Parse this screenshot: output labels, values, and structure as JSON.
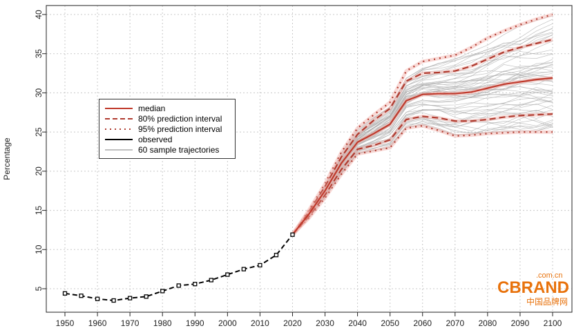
{
  "chart_data": {
    "type": "line",
    "ylabel": "Percentage",
    "xlabel": "",
    "xlim": [
      1945,
      2105
    ],
    "ylim": [
      2,
      41
    ],
    "x_ticks": [
      1950,
      1960,
      1970,
      1980,
      1990,
      2000,
      2010,
      2020,
      2030,
      2040,
      2050,
      2060,
      2070,
      2080,
      2090,
      2100
    ],
    "y_ticks": [
      5,
      10,
      15,
      20,
      25,
      30,
      35,
      40
    ],
    "grid": true,
    "legend_placement": "left",
    "legend": [
      "median",
      "80% prediction interval",
      "95% prediction interval",
      "observed",
      "60 sample trajectories"
    ],
    "observed": {
      "x": [
        1950,
        1955,
        1960,
        1965,
        1970,
        1975,
        1980,
        1985,
        1990,
        1995,
        2000,
        2005,
        2010,
        2015,
        2020
      ],
      "y": [
        4.4,
        4.1,
        3.7,
        3.5,
        3.8,
        4.0,
        4.7,
        5.4,
        5.6,
        6.1,
        6.8,
        7.5,
        8.0,
        9.3,
        11.9
      ]
    },
    "projection_x": [
      2020,
      2025,
      2030,
      2035,
      2040,
      2045,
      2050,
      2055,
      2060,
      2065,
      2070,
      2075,
      2080,
      2085,
      2090,
      2095,
      2100
    ],
    "median": [
      11.9,
      14.5,
      17.5,
      21.0,
      23.7,
      24.8,
      26.0,
      29.0,
      29.8,
      29.9,
      29.9,
      30.1,
      30.6,
      31.1,
      31.4,
      31.7,
      31.9
    ],
    "pi80_upper": [
      11.9,
      14.8,
      18.0,
      21.8,
      24.7,
      26.5,
      28.0,
      31.5,
      32.5,
      32.6,
      32.8,
      33.4,
      34.3,
      35.2,
      35.8,
      36.3,
      36.8
    ],
    "pi80_lower": [
      11.9,
      14.2,
      17.0,
      20.2,
      22.8,
      23.3,
      24.0,
      26.6,
      27.0,
      26.8,
      26.4,
      26.4,
      26.6,
      26.9,
      27.1,
      27.2,
      27.3
    ],
    "pi95_upper": [
      11.9,
      15.0,
      18.4,
      22.4,
      25.5,
      27.2,
      28.8,
      32.8,
      34.0,
      34.4,
      34.8,
      35.8,
      37.0,
      37.9,
      38.7,
      39.4,
      40.0
    ],
    "pi95_lower": [
      11.9,
      14.0,
      16.6,
      19.6,
      22.2,
      22.6,
      23.0,
      25.5,
      25.8,
      25.2,
      24.5,
      24.6,
      24.8,
      24.9,
      25.0,
      25.0,
      25.0
    ],
    "sample_trajectories_count": 60,
    "colors": {
      "median": "#c0392b",
      "interval": "#b03a2e",
      "observed": "#000000",
      "samples": "#a8a8a8"
    }
  },
  "watermark": {
    "domain": ".com.cn",
    "brand": "BRAND",
    "tagline": "中国品牌网",
    "color": "#e8720c"
  }
}
